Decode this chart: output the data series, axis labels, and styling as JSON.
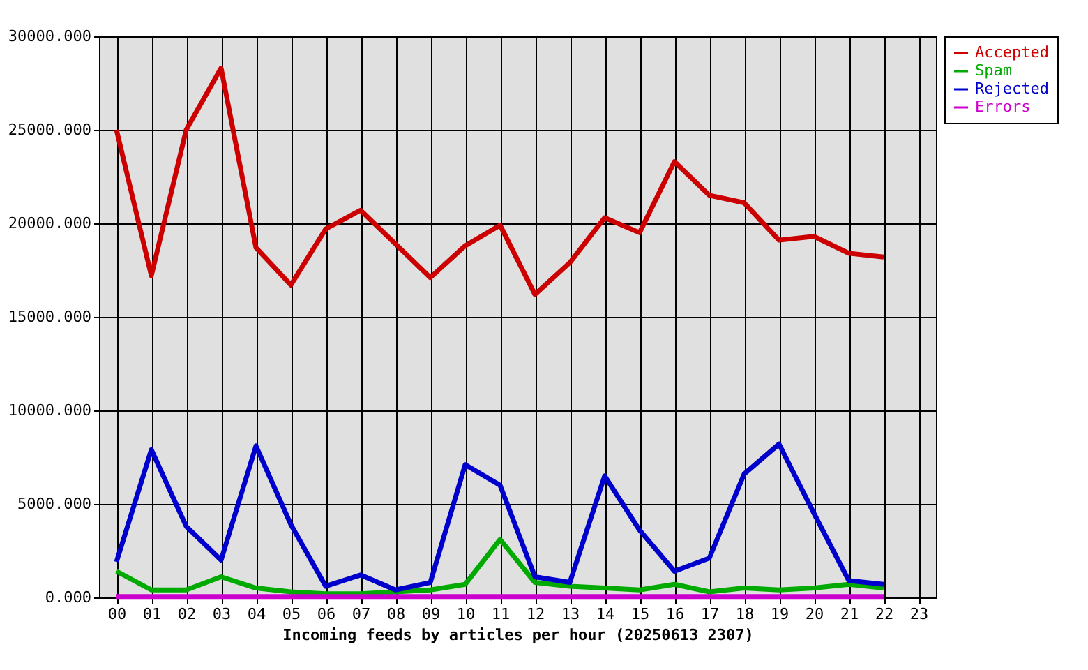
{
  "chart_data": {
    "type": "line",
    "xlabel": "Incoming feeds by articles per hour (20250613 2307)",
    "categories": [
      "00",
      "01",
      "02",
      "03",
      "04",
      "05",
      "06",
      "07",
      "08",
      "09",
      "10",
      "11",
      "12",
      "13",
      "14",
      "15",
      "16",
      "17",
      "18",
      "19",
      "20",
      "21",
      "22",
      "23"
    ],
    "series": [
      {
        "name": "Accepted",
        "color": "#cc0000",
        "values": [
          25000,
          17200,
          25000,
          28300,
          18700,
          16700,
          19700,
          20700,
          18900,
          17100,
          18800,
          19900,
          16200,
          17900,
          20300,
          19500,
          23300,
          21500,
          21100,
          19100,
          19300,
          18400,
          18200,
          null
        ]
      },
      {
        "name": "Spam",
        "color": "#00aa00",
        "values": [
          1400,
          400,
          400,
          1100,
          500,
          300,
          200,
          200,
          300,
          400,
          700,
          3100,
          800,
          600,
          500,
          400,
          700,
          300,
          500,
          400,
          500,
          700,
          500,
          null
        ]
      },
      {
        "name": "Rejected",
        "color": "#0000cc",
        "values": [
          1900,
          7900,
          3800,
          2000,
          8100,
          3900,
          600,
          1200,
          400,
          800,
          7100,
          6000,
          1100,
          800,
          6500,
          3600,
          1400,
          2100,
          6600,
          8200,
          4500,
          900,
          700,
          null
        ]
      },
      {
        "name": "Errors",
        "color": "#cc00cc",
        "values": [
          50,
          50,
          50,
          50,
          50,
          50,
          50,
          50,
          50,
          50,
          50,
          50,
          50,
          50,
          50,
          50,
          50,
          50,
          50,
          50,
          50,
          50,
          50,
          null
        ]
      }
    ],
    "ylim": [
      0,
      30000
    ],
    "yticks": [
      {
        "value": 0,
        "label": "0.000"
      },
      {
        "value": 5000,
        "label": "5000.000"
      },
      {
        "value": 10000,
        "label": "10000.000"
      },
      {
        "value": 15000,
        "label": "15000.000"
      },
      {
        "value": 20000,
        "label": "20000.000"
      },
      {
        "value": 25000,
        "label": "25000.000"
      },
      {
        "value": 30000,
        "label": "30000.000"
      }
    ],
    "grid": true,
    "legend": "top right",
    "marker": "none",
    "line_style": "solid"
  }
}
